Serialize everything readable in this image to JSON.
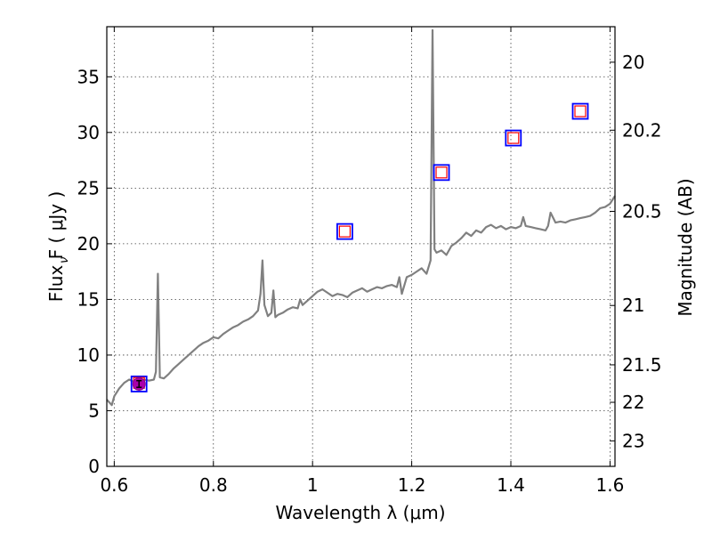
{
  "chart_data": {
    "type": "line",
    "xlabel": "Wavelength  λ (μm)",
    "ylabel": "Flux  F  (  μJy )",
    "ylabel_sub": "ν",
    "y2label": "Magnitude (AB)",
    "xlim": [
      0.585,
      1.61
    ],
    "ylim": [
      0,
      39.5
    ],
    "x_ticks": [
      0.6,
      0.8,
      1.0,
      1.2,
      1.4,
      1.6
    ],
    "x_tick_labels": [
      "0.6",
      "0.8",
      "1",
      "1.2",
      "1.4",
      "1.6"
    ],
    "y_ticks": [
      0,
      5,
      10,
      15,
      20,
      25,
      30,
      35
    ],
    "y_tick_labels": [
      "0",
      "5",
      "10",
      "15",
      "20",
      "25",
      "30",
      "35"
    ],
    "y2_ticks": [
      {
        "mag": 20,
        "label": "20"
      },
      {
        "mag": 20.2,
        "label": "20.2"
      },
      {
        "mag": 20.5,
        "label": "20.5"
      },
      {
        "mag": 21,
        "label": "21"
      },
      {
        "mag": 21.5,
        "label": "21.5"
      },
      {
        "mag": 22,
        "label": "22"
      },
      {
        "mag": 23,
        "label": "23"
      }
    ],
    "grid": true,
    "spectrum": {
      "color": "#808080",
      "x": [
        0.585,
        0.595,
        0.6,
        0.61,
        0.62,
        0.63,
        0.64,
        0.65,
        0.66,
        0.67,
        0.68,
        0.684,
        0.688,
        0.692,
        0.7,
        0.71,
        0.72,
        0.73,
        0.74,
        0.75,
        0.76,
        0.77,
        0.78,
        0.79,
        0.8,
        0.81,
        0.82,
        0.83,
        0.84,
        0.85,
        0.86,
        0.87,
        0.88,
        0.89,
        0.895,
        0.899,
        0.903,
        0.91,
        0.917,
        0.921,
        0.925,
        0.93,
        0.94,
        0.95,
        0.96,
        0.97,
        0.975,
        0.98,
        0.99,
        1.0,
        1.01,
        1.02,
        1.03,
        1.04,
        1.05,
        1.06,
        1.07,
        1.08,
        1.09,
        1.1,
        1.11,
        1.12,
        1.13,
        1.14,
        1.15,
        1.16,
        1.17,
        1.175,
        1.18,
        1.19,
        1.2,
        1.21,
        1.22,
        1.23,
        1.238,
        1.242,
        1.246,
        1.25,
        1.26,
        1.27,
        1.28,
        1.29,
        1.3,
        1.31,
        1.32,
        1.33,
        1.34,
        1.35,
        1.36,
        1.37,
        1.38,
        1.39,
        1.4,
        1.41,
        1.42,
        1.425,
        1.43,
        1.44,
        1.45,
        1.46,
        1.47,
        1.475,
        1.48,
        1.49,
        1.5,
        1.51,
        1.52,
        1.53,
        1.54,
        1.55,
        1.56,
        1.57,
        1.58,
        1.59,
        1.6,
        1.61
      ],
      "y": [
        6.0,
        5.5,
        6.3,
        7.0,
        7.5,
        7.8,
        7.6,
        7.7,
        7.8,
        7.7,
        7.8,
        8.5,
        17.3,
        8.0,
        7.9,
        8.3,
        8.8,
        9.2,
        9.6,
        10.0,
        10.4,
        10.8,
        11.1,
        11.3,
        11.6,
        11.5,
        11.9,
        12.2,
        12.5,
        12.7,
        13.0,
        13.2,
        13.5,
        14.0,
        15.5,
        18.5,
        14.5,
        13.5,
        13.8,
        15.8,
        13.4,
        13.6,
        13.8,
        14.1,
        14.3,
        14.2,
        15.0,
        14.5,
        14.9,
        15.3,
        15.7,
        15.9,
        15.6,
        15.3,
        15.5,
        15.4,
        15.2,
        15.6,
        15.8,
        16.0,
        15.7,
        15.9,
        16.1,
        16.0,
        16.2,
        16.3,
        16.1,
        17.0,
        15.5,
        17.0,
        17.2,
        17.5,
        17.8,
        17.3,
        18.5,
        39.2,
        19.5,
        19.2,
        19.4,
        19.0,
        19.8,
        20.1,
        20.5,
        21.0,
        20.7,
        21.2,
        21.0,
        21.5,
        21.7,
        21.4,
        21.6,
        21.3,
        21.5,
        21.4,
        21.6,
        22.4,
        21.6,
        21.5,
        21.4,
        21.3,
        21.2,
        21.6,
        22.8,
        21.9,
        22.0,
        21.9,
        22.1,
        22.2,
        22.3,
        22.4,
        22.5,
        22.8,
        23.2,
        23.3,
        23.6,
        24.3
      ]
    },
    "photometry": [
      {
        "x": 0.65,
        "y": 7.4,
        "model": 7.5
      },
      {
        "x": 1.065,
        "y": 21.1,
        "model": 21.1
      },
      {
        "x": 1.26,
        "y": 26.4,
        "model": 26.4
      },
      {
        "x": 1.405,
        "y": 29.5,
        "model": 29.5
      },
      {
        "x": 1.54,
        "y": 31.9,
        "model": 31.9
      }
    ],
    "observed_point": {
      "x": 0.65,
      "y": 7.4,
      "err": 0.3
    },
    "colors": {
      "observed_marker": "#0000ff",
      "model_marker": "#ff0000",
      "detection_fill": "#aa00aa",
      "errorbar": "#000000"
    }
  }
}
